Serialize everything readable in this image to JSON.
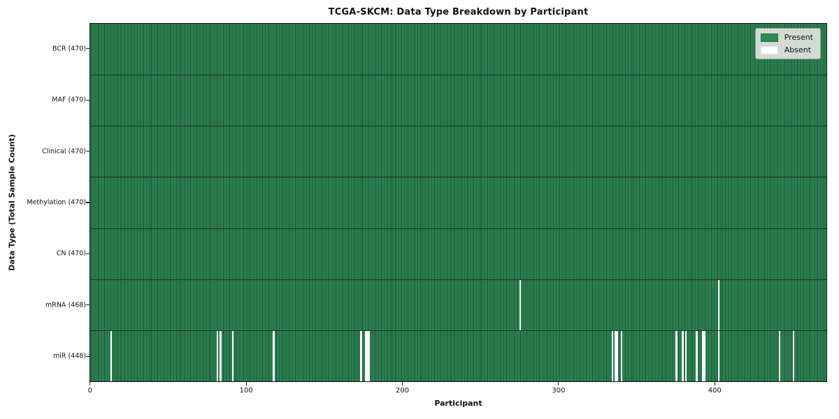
{
  "chart_data": {
    "type": "heatmap",
    "title": "TCGA-SKCM: Data Type Breakdown by Participant",
    "xlabel": "Participant",
    "ylabel": "Data Type (Total Sample Count)",
    "x_ticks": [
      0,
      100,
      200,
      300,
      400
    ],
    "n_participants": 470,
    "grid": false,
    "legend_position": "upper right",
    "legend": [
      {
        "label": "Present",
        "color": "#2e8b57"
      },
      {
        "label": "Absent",
        "color": "#ffffff"
      }
    ],
    "colors": {
      "present": "#2e8b57",
      "absent": "#ffffff",
      "cell_edge": "#1e4d33",
      "row_divider": "#1f2f25",
      "legend_bg": "#e9e9e6"
    },
    "rows": [
      {
        "label": "BCR (470)",
        "count": 470,
        "absent_participants": []
      },
      {
        "label": "MAF (470)",
        "count": 470,
        "absent_participants": []
      },
      {
        "label": "Clinical (470)",
        "count": 470,
        "absent_participants": []
      },
      {
        "label": "Methylation (470)",
        "count": 470,
        "absent_participants": []
      },
      {
        "label": "CN (470)",
        "count": 470,
        "absent_participants": []
      },
      {
        "label": "mRNA (468)",
        "count": 468,
        "absent_participants": [
          275,
          402
        ]
      },
      {
        "label": "miR (448)",
        "count": 448,
        "absent_participants": [
          13,
          81,
          83,
          91,
          117,
          173,
          176,
          177,
          178,
          334,
          336,
          337,
          340,
          375,
          379,
          381,
          388,
          392,
          393,
          402,
          441,
          450
        ]
      }
    ]
  }
}
